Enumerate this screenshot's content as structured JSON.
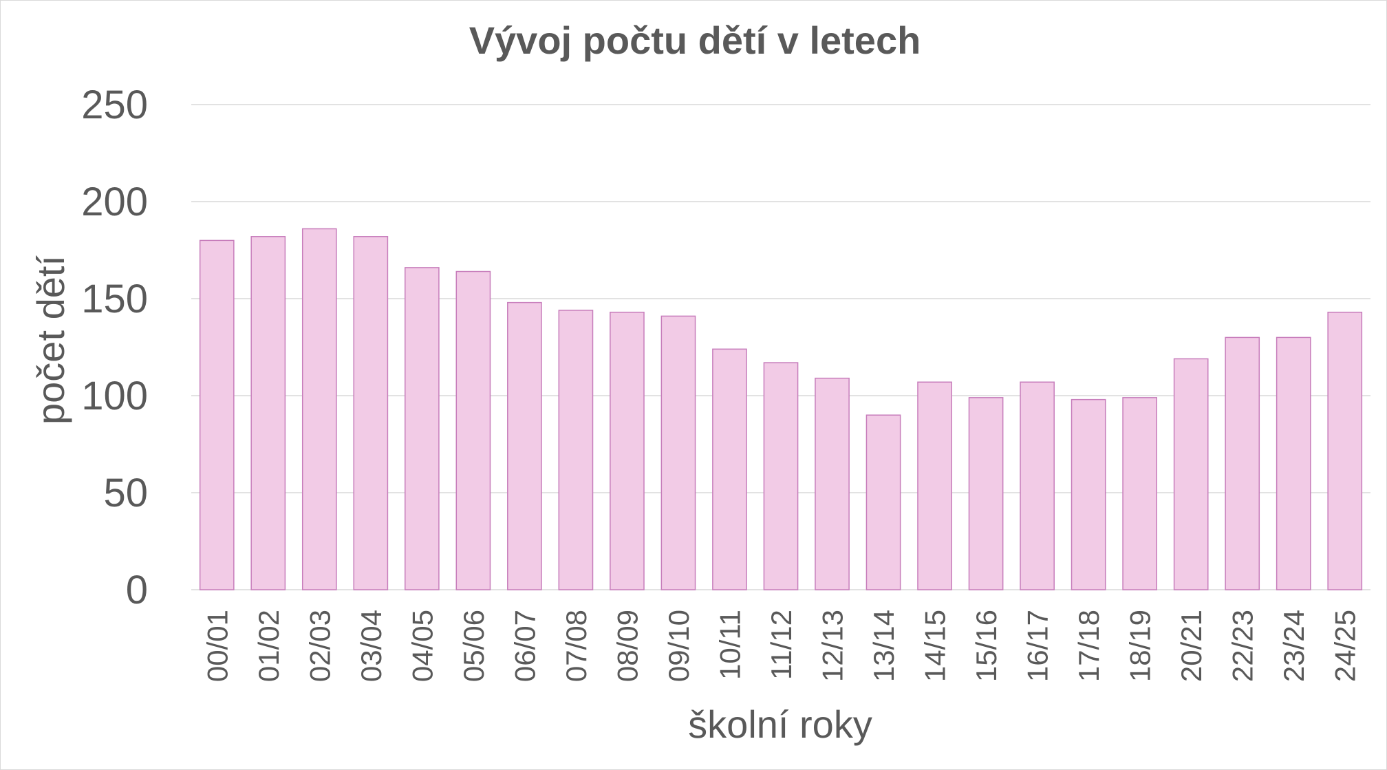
{
  "chart_data": {
    "type": "bar",
    "title": "Vývoj počtu dětí v letech",
    "xlabel": "školní roky",
    "ylabel": "počet dětí",
    "ylim": [
      0,
      250
    ],
    "yticks": [
      "0",
      "50",
      "100",
      "150",
      "200",
      "250"
    ],
    "grid": true,
    "legend": "none",
    "categories": [
      "00/01",
      "01/02",
      "02/03",
      "03/04",
      "04/05",
      "05/06",
      "06/07",
      "07/08",
      "08/09",
      "09/10",
      "10/11",
      "11/12",
      "12/13",
      "13/14",
      "14/15",
      "15/16",
      "16/17",
      "17/18",
      "18/19",
      "20/21",
      "22/23",
      "23/24",
      "24/25"
    ],
    "values": [
      180,
      182,
      186,
      182,
      166,
      164,
      148,
      144,
      143,
      141,
      124,
      117,
      109,
      90,
      107,
      99,
      107,
      98,
      99,
      119,
      130,
      130,
      143
    ],
    "colors": {
      "bar_fill": "#f2cbe6",
      "bar_stroke": "#c77dbb",
      "text": "#595959",
      "grid": "#d9d9d9"
    }
  }
}
